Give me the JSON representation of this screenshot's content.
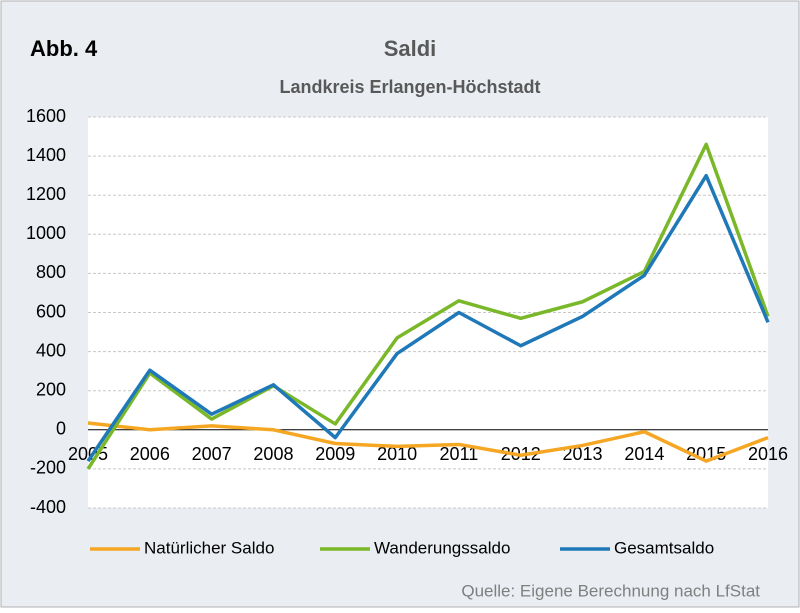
{
  "chart_data": {
    "type": "line",
    "figure_label": "Abb. 4",
    "title": "Saldi",
    "subtitle": "Landkreis Erlangen-Höchstadt",
    "categories": [
      "2005",
      "2006",
      "2007",
      "2008",
      "2009",
      "2010",
      "2011",
      "2012",
      "2013",
      "2014",
      "2015",
      "2016"
    ],
    "series": [
      {
        "name": "Natürlicher Saldo",
        "color": "#f5a623",
        "values": [
          35,
          0,
          20,
          0,
          -70,
          -85,
          -75,
          -130,
          -80,
          -10,
          -160,
          -40
        ]
      },
      {
        "name": "Wanderungssaldo",
        "color": "#7ab829",
        "values": [
          -200,
          290,
          55,
          225,
          30,
          470,
          660,
          570,
          655,
          810,
          1460,
          580
        ]
      },
      {
        "name": "Gesamtsaldo",
        "color": "#1f78b8",
        "values": [
          -160,
          305,
          80,
          230,
          -40,
          390,
          600,
          430,
          580,
          790,
          1300,
          550
        ]
      }
    ],
    "ylim": [
      -400,
      1600
    ],
    "yticks": [
      -400,
      -200,
      0,
      200,
      400,
      600,
      800,
      1000,
      1200,
      1400,
      1600
    ],
    "grid": true,
    "legend": "bottom",
    "source": "Quelle: Eigene Berechnung nach LfStat"
  }
}
